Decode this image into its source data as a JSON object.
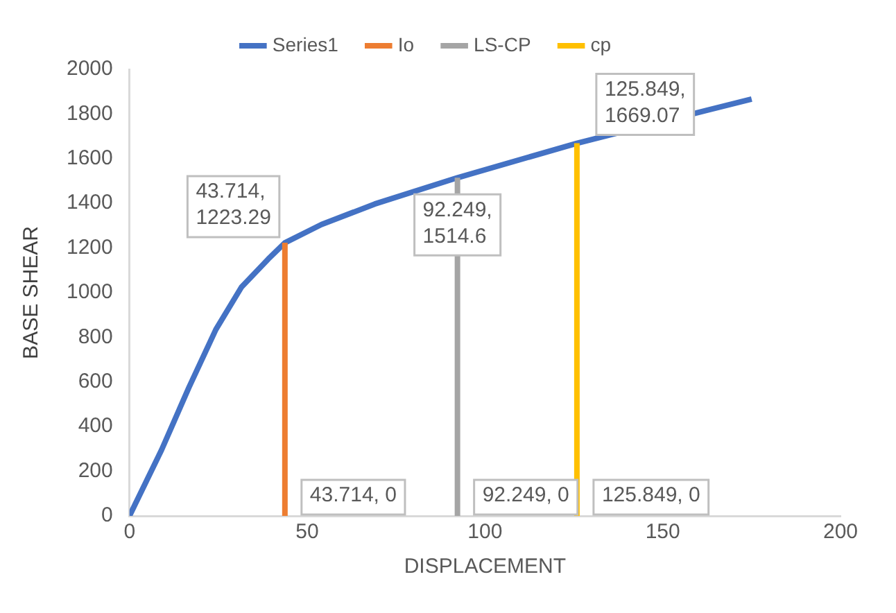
{
  "chart_data": {
    "type": "line",
    "xlabel": "DISPLACEMENT",
    "ylabel": "BASE SHEAR",
    "xlim": [
      0,
      200
    ],
    "xticks": [
      0,
      50,
      100,
      150,
      200
    ],
    "ylim": [
      0,
      2000
    ],
    "yticks": [
      0,
      200,
      400,
      600,
      800,
      1000,
      1200,
      1400,
      1600,
      1800,
      2000
    ],
    "grid": false,
    "legend": "top",
    "marker": "none",
    "line_style": "solid",
    "series": [
      {
        "name": "Series1",
        "color": "#4472c4",
        "x": [
          0,
          9,
          16.7,
          24.3,
          31.5,
          39,
          43.714,
          54,
          69,
          92.249,
          125.849,
          175
        ],
        "values": [
          0,
          295,
          575,
          835,
          1025,
          1150,
          1223.29,
          1305,
          1397,
          1514.6,
          1669.07,
          1867
        ]
      },
      {
        "name": "Io",
        "color": "#ed7d31",
        "x": [
          43.714,
          43.714
        ],
        "values": [
          0,
          1223.29
        ],
        "value_labels": [
          "43.714, 0",
          "43.714, 1223.29"
        ]
      },
      {
        "name": "LS-CP",
        "color": "#a5a5a5",
        "x": [
          92.249,
          92.249
        ],
        "values": [
          0,
          1514.6
        ],
        "value_labels": [
          "92.249, 0",
          "92.249, 1514.6"
        ]
      },
      {
        "name": "cp",
        "color": "#ffc000",
        "x": [
          125.849,
          125.849
        ],
        "values": [
          0,
          1669.07
        ],
        "value_labels": [
          "125.849, 0",
          "125.849, 1669.07"
        ]
      }
    ]
  }
}
